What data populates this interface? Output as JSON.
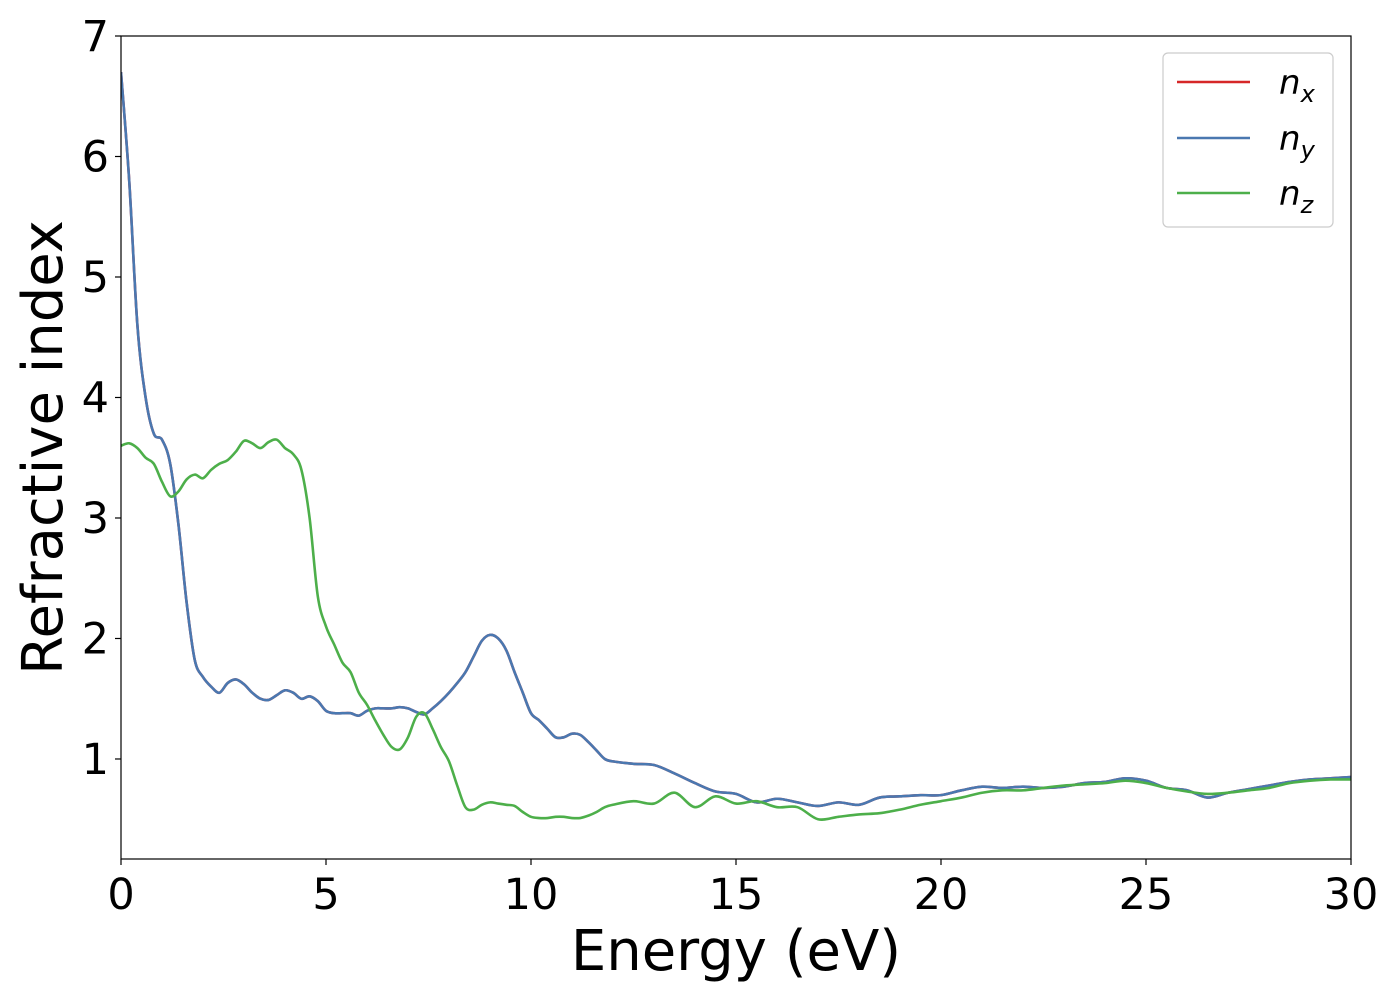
{
  "chart_data": {
    "type": "line",
    "xlabel": "Energy (eV)",
    "ylabel": "Refractive index",
    "xlim": [
      0,
      30
    ],
    "ylim": [
      0.17,
      7.0
    ],
    "xticks": [
      "0",
      "5",
      "10",
      "15",
      "20",
      "25",
      "30"
    ],
    "yticks": [
      "1",
      "2",
      "3",
      "4",
      "5",
      "6",
      "7"
    ],
    "grid": false,
    "legend_position": "top-right",
    "legend": [
      {
        "base": "n",
        "sub": "x",
        "color": "#d62728"
      },
      {
        "base": "n",
        "sub": "y",
        "color": "#4a78b0"
      },
      {
        "base": "n",
        "sub": "z",
        "color": "#4daf4a"
      }
    ],
    "series": [
      {
        "name": "n_x",
        "color": "#d62728",
        "x": [
          0,
          0.2,
          0.4,
          0.6,
          0.8,
          1.0,
          1.2,
          1.4,
          1.6,
          1.8,
          2.0,
          2.2,
          2.4,
          2.6,
          2.8,
          3.0,
          3.2,
          3.4,
          3.6,
          3.8,
          4.0,
          4.2,
          4.4,
          4.6,
          4.8,
          5.0,
          5.2,
          5.4,
          5.6,
          5.8,
          6.0,
          6.2,
          6.4,
          6.6,
          6.8,
          7.0,
          7.2,
          7.4,
          7.6,
          7.8,
          8.0,
          8.2,
          8.4,
          8.6,
          8.8,
          9.0,
          9.2,
          9.4,
          9.6,
          9.8,
          10.0,
          10.2,
          10.4,
          10.6,
          10.8,
          11.0,
          11.2,
          11.4,
          11.6,
          11.8,
          12.0,
          12.5,
          13.0,
          13.5,
          14.0,
          14.5,
          15.0,
          15.5,
          16.0,
          16.5,
          17.0,
          17.5,
          18.0,
          18.5,
          19.0,
          19.5,
          20.0,
          20.5,
          21.0,
          21.5,
          22.0,
          22.5,
          23.0,
          23.5,
          24.0,
          24.5,
          25.0,
          25.5,
          26.0,
          26.5,
          27.0,
          27.5,
          28.0,
          28.5,
          29.0,
          29.5,
          30.0
        ],
        "y": [
          6.7,
          5.8,
          4.6,
          4.0,
          3.7,
          3.65,
          3.45,
          2.95,
          2.3,
          1.82,
          1.68,
          1.6,
          1.55,
          1.63,
          1.66,
          1.62,
          1.55,
          1.5,
          1.49,
          1.53,
          1.57,
          1.55,
          1.5,
          1.52,
          1.48,
          1.4,
          1.38,
          1.38,
          1.38,
          1.36,
          1.4,
          1.42,
          1.42,
          1.42,
          1.43,
          1.42,
          1.39,
          1.37,
          1.42,
          1.48,
          1.55,
          1.63,
          1.72,
          1.85,
          1.98,
          2.03,
          2.0,
          1.9,
          1.72,
          1.55,
          1.38,
          1.32,
          1.25,
          1.18,
          1.18,
          1.21,
          1.2,
          1.14,
          1.07,
          1.0,
          0.98,
          0.96,
          0.95,
          0.88,
          0.8,
          0.73,
          0.71,
          0.64,
          0.67,
          0.64,
          0.61,
          0.64,
          0.62,
          0.68,
          0.69,
          0.7,
          0.7,
          0.74,
          0.77,
          0.76,
          0.77,
          0.76,
          0.77,
          0.8,
          0.81,
          0.84,
          0.82,
          0.76,
          0.74,
          0.68,
          0.72,
          0.75,
          0.78,
          0.81,
          0.83,
          0.84,
          0.85
        ]
      },
      {
        "name": "n_y",
        "color": "#4a78b0",
        "x": [
          0,
          0.2,
          0.4,
          0.6,
          0.8,
          1.0,
          1.2,
          1.4,
          1.6,
          1.8,
          2.0,
          2.2,
          2.4,
          2.6,
          2.8,
          3.0,
          3.2,
          3.4,
          3.6,
          3.8,
          4.0,
          4.2,
          4.4,
          4.6,
          4.8,
          5.0,
          5.2,
          5.4,
          5.6,
          5.8,
          6.0,
          6.2,
          6.4,
          6.6,
          6.8,
          7.0,
          7.2,
          7.4,
          7.6,
          7.8,
          8.0,
          8.2,
          8.4,
          8.6,
          8.8,
          9.0,
          9.2,
          9.4,
          9.6,
          9.8,
          10.0,
          10.2,
          10.4,
          10.6,
          10.8,
          11.0,
          11.2,
          11.4,
          11.6,
          11.8,
          12.0,
          12.5,
          13.0,
          13.5,
          14.0,
          14.5,
          15.0,
          15.5,
          16.0,
          16.5,
          17.0,
          17.5,
          18.0,
          18.5,
          19.0,
          19.5,
          20.0,
          20.5,
          21.0,
          21.5,
          22.0,
          22.5,
          23.0,
          23.5,
          24.0,
          24.5,
          25.0,
          25.5,
          26.0,
          26.5,
          27.0,
          27.5,
          28.0,
          28.5,
          29.0,
          29.5,
          30.0
        ],
        "y": [
          6.7,
          5.8,
          4.6,
          4.0,
          3.7,
          3.65,
          3.45,
          2.95,
          2.3,
          1.82,
          1.68,
          1.6,
          1.55,
          1.63,
          1.66,
          1.62,
          1.55,
          1.5,
          1.49,
          1.53,
          1.57,
          1.55,
          1.5,
          1.52,
          1.48,
          1.4,
          1.38,
          1.38,
          1.38,
          1.36,
          1.4,
          1.42,
          1.42,
          1.42,
          1.43,
          1.42,
          1.39,
          1.37,
          1.42,
          1.48,
          1.55,
          1.63,
          1.72,
          1.85,
          1.98,
          2.03,
          2.0,
          1.9,
          1.72,
          1.55,
          1.38,
          1.32,
          1.25,
          1.18,
          1.18,
          1.21,
          1.2,
          1.14,
          1.07,
          1.0,
          0.98,
          0.96,
          0.95,
          0.88,
          0.8,
          0.73,
          0.71,
          0.64,
          0.67,
          0.64,
          0.61,
          0.64,
          0.62,
          0.68,
          0.69,
          0.7,
          0.7,
          0.74,
          0.77,
          0.76,
          0.77,
          0.76,
          0.77,
          0.8,
          0.81,
          0.84,
          0.82,
          0.76,
          0.74,
          0.68,
          0.72,
          0.75,
          0.78,
          0.81,
          0.83,
          0.84,
          0.85
        ]
      },
      {
        "name": "n_z",
        "color": "#4daf4a",
        "x": [
          0,
          0.2,
          0.4,
          0.6,
          0.8,
          1.0,
          1.2,
          1.4,
          1.6,
          1.8,
          2.0,
          2.2,
          2.4,
          2.6,
          2.8,
          3.0,
          3.2,
          3.4,
          3.6,
          3.8,
          4.0,
          4.2,
          4.4,
          4.6,
          4.8,
          5.0,
          5.2,
          5.4,
          5.6,
          5.8,
          6.0,
          6.2,
          6.4,
          6.6,
          6.8,
          7.0,
          7.2,
          7.4,
          7.6,
          7.8,
          8.0,
          8.2,
          8.4,
          8.6,
          8.8,
          9.0,
          9.2,
          9.4,
          9.6,
          9.8,
          10.0,
          10.2,
          10.4,
          10.6,
          10.8,
          11.0,
          11.2,
          11.4,
          11.6,
          11.8,
          12.0,
          12.5,
          13.0,
          13.5,
          14.0,
          14.5,
          15.0,
          15.5,
          16.0,
          16.5,
          17.0,
          17.5,
          18.0,
          18.5,
          19.0,
          19.5,
          20.0,
          20.5,
          21.0,
          21.5,
          22.0,
          22.5,
          23.0,
          23.5,
          24.0,
          24.5,
          25.0,
          25.5,
          26.0,
          26.5,
          27.0,
          27.5,
          28.0,
          28.5,
          29.0,
          29.5,
          30.0
        ],
        "y": [
          3.6,
          3.62,
          3.58,
          3.5,
          3.45,
          3.3,
          3.18,
          3.22,
          3.32,
          3.36,
          3.33,
          3.4,
          3.45,
          3.48,
          3.55,
          3.64,
          3.62,
          3.58,
          3.63,
          3.65,
          3.58,
          3.53,
          3.4,
          3.0,
          2.35,
          2.1,
          1.95,
          1.8,
          1.72,
          1.55,
          1.45,
          1.32,
          1.2,
          1.1,
          1.08,
          1.18,
          1.35,
          1.38,
          1.25,
          1.1,
          0.98,
          0.78,
          0.6,
          0.58,
          0.62,
          0.64,
          0.63,
          0.62,
          0.61,
          0.56,
          0.52,
          0.51,
          0.51,
          0.52,
          0.52,
          0.51,
          0.51,
          0.53,
          0.56,
          0.6,
          0.62,
          0.65,
          0.63,
          0.72,
          0.6,
          0.69,
          0.63,
          0.65,
          0.6,
          0.6,
          0.5,
          0.52,
          0.54,
          0.55,
          0.58,
          0.62,
          0.65,
          0.68,
          0.72,
          0.74,
          0.74,
          0.76,
          0.78,
          0.79,
          0.8,
          0.82,
          0.8,
          0.76,
          0.73,
          0.71,
          0.72,
          0.74,
          0.76,
          0.8,
          0.82,
          0.83,
          0.83
        ]
      }
    ]
  }
}
